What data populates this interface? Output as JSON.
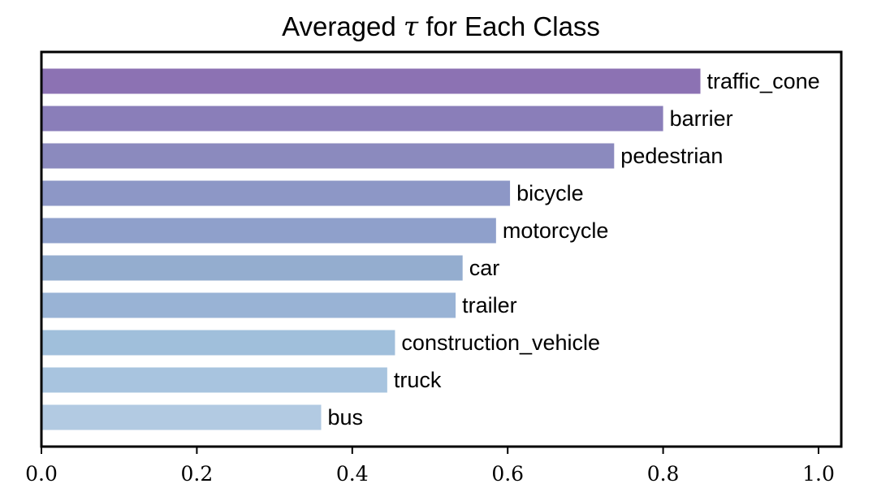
{
  "chart_data": {
    "type": "bar",
    "orientation": "horizontal",
    "title": {
      "prefix": "Averaged ",
      "symbol": "τ",
      "suffix": " for Each Class"
    },
    "xlabel": "",
    "ylabel": "",
    "xlim": [
      0.0,
      1.0
    ],
    "grid": false,
    "legend": "none",
    "categories": [
      "traffic_cone",
      "barrier",
      "pedestrian",
      "bicycle",
      "motorcycle",
      "car",
      "trailer",
      "construction_vehicle",
      "truck",
      "bus"
    ],
    "values": [
      0.848,
      0.8,
      0.737,
      0.603,
      0.585,
      0.542,
      0.533,
      0.455,
      0.445,
      0.36
    ],
    "bar_colors": [
      "#8c72b3",
      "#8a7eb9",
      "#8b8abe",
      "#8d97c6",
      "#8fa0cb",
      "#94adcf",
      "#99b3d5",
      "#a0bfdb",
      "#a8c4df",
      "#b2cae2"
    ],
    "x_ticks": [
      "0.0",
      "0.2",
      "0.4",
      "0.6",
      "0.8",
      "1.0"
    ],
    "x_tick_values": [
      0.0,
      0.2,
      0.4,
      0.6,
      0.8,
      1.0
    ]
  }
}
